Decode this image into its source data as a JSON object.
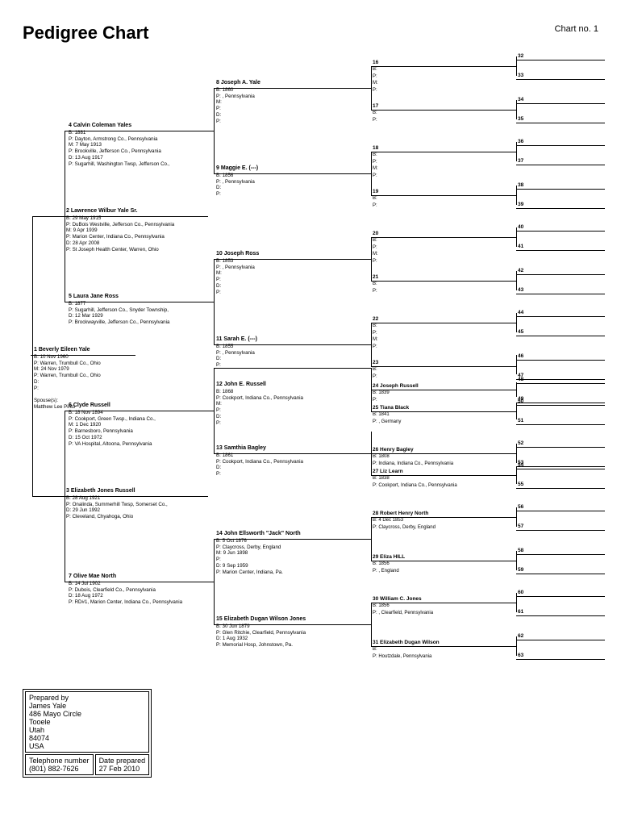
{
  "title": "Pedigree Chart",
  "chart_no": "Chart no. 1",
  "colors": {
    "bg": "#ffffff",
    "line": "#000000",
    "text": "#000000"
  },
  "persons": {
    "p1": {
      "num": "1",
      "name": "Beverly Eileen Yale",
      "lines": [
        "B: 10 Nov 1960",
        "P: Warren, Trumbull Co., Ohio",
        "M: 24 Nov 1979",
        "P: Warren, Trumbull Co., Ohio",
        "D:",
        "P:",
        "",
        "Spouse(s):",
        "Matthew Lee Pinto"
      ]
    },
    "p2": {
      "num": "2",
      "name": "Lawrence Wilbur Yale Sr.",
      "lines": [
        "B: 29 May 1915",
        "P: DuBois Westville, Jefferson Co., Pennsylvania",
        "M: 9 Apr 1939",
        "P: Marion Center, Indiana Co., Pennsylvania",
        "D: 28 Apr 2008",
        "P: St Joseph Health Center, Warren, Ohio"
      ]
    },
    "p3": {
      "num": "3",
      "name": "Elizabeth Jones Russell",
      "lines": [
        "B: 28 Aug 1921",
        "P: Onalinda, Summerhill Twsp, Somerset Co.,",
        "D: 29 Jun 1992",
        "P: Cleveland, Chyahoga, Ohio"
      ]
    },
    "p4": {
      "num": "4",
      "name": "Calvin Coleman Yales",
      "lines": [
        "B: 1881",
        "P: Dayton, Armstrong Co., Pennsylvania",
        "M: 7 May 1913",
        "P: Brookville, Jefferson Co., Pennsylvania",
        "D: 13 Aug 1917",
        "P: Sugarhill, Washington Twsp, Jefferson Co.,"
      ]
    },
    "p5": {
      "num": "5",
      "name": "Laura Jane Ross",
      "lines": [
        "B: 1877",
        "P: Sugarhill, Jefferson Co., Snyder Township,",
        "D: 12 Mar 1929",
        "P: Brockwayville, Jefferson Co., Pennsylvania"
      ]
    },
    "p6": {
      "num": "6",
      "name": "Clyde Russell",
      "lines": [
        "B: 18 Nov 1894",
        "P: Cookport, Green Twsp., Indiana Co.,",
        "M: 1 Dec 1920",
        "P: Barnesboro, Pennsylvania",
        "D: 15 Oct 1972",
        "P: VA Hospital, Altoona, Pennsylvania"
      ]
    },
    "p7": {
      "num": "7",
      "name": "Olive Mae North",
      "lines": [
        "B: 14 Jul 1902",
        "P: Dubois, Clearfield Co., Pennsylvania",
        "D: 18 Aug 1972",
        "P: RD#1, Marion Center, Indiana Co., Pennsylvania"
      ]
    },
    "p8": {
      "num": "8",
      "name": "Joseph A. Yale",
      "lines": [
        "B: 1860",
        "P: , Pennsylvania",
        "M:",
        "P:",
        "D:",
        "P:"
      ]
    },
    "p9": {
      "num": "9",
      "name": "Maggie E. (---)",
      "lines": [
        "B: 1856",
        "P: , Pennsylvania",
        "D:",
        "P:"
      ]
    },
    "p10": {
      "num": "10",
      "name": "Joseph Ross",
      "lines": [
        "B: 1853",
        "P: , Pennsylvania",
        "M:",
        "P:",
        "D:",
        "P:"
      ]
    },
    "p11": {
      "num": "11",
      "name": "Sarah E. (---)",
      "lines": [
        "B: 1855",
        "P: , Pennsylvania",
        "D:",
        "P:"
      ]
    },
    "p12": {
      "num": "12",
      "name": "John E. Russell",
      "lines": [
        "B: 1868",
        "P: Cookport, Indiana Co., Pennsylvania",
        "M:",
        "P:",
        "D:",
        "P:"
      ]
    },
    "p13": {
      "num": "13",
      "name": "Samthia Bagley",
      "lines": [
        "B: 1861",
        "P: Cookport, Indiana Co., Pennsylvania",
        "D:",
        "P:"
      ]
    },
    "p14": {
      "num": "14",
      "name": "John Ellsworth \"Jack\" North",
      "lines": [
        "B: 5 Oct 1876",
        "P: Claycross, Derby, England",
        "M: 9 Jun 1898",
        "P:",
        "D: 9 Sep 1959",
        "P: Marion Center, Indiana, Pa."
      ]
    },
    "p15": {
      "num": "15",
      "name": "Elizabeth Dugan Wilson Jones",
      "lines": [
        "B: 30 Jun 1879",
        "P: Glen Ritchie, Clearfield, Pennsylvania",
        "D: 1 Aug 1932",
        "P: Memorial Hosp, Johnstown, Pa."
      ]
    }
  },
  "gen5": {
    "s16": {
      "num": "16",
      "sub": [
        "B:",
        "P:",
        "M:",
        "P:"
      ]
    },
    "s17": {
      "num": "17",
      "sub": [
        "B:",
        "P:"
      ]
    },
    "s18": {
      "num": "18",
      "sub": [
        "B:",
        "P:",
        "M:",
        "P:"
      ]
    },
    "s19": {
      "num": "19",
      "sub": [
        "B:",
        "P:"
      ]
    },
    "s20": {
      "num": "20",
      "sub": [
        "B:",
        "P:",
        "M:",
        "P:"
      ]
    },
    "s21": {
      "num": "21",
      "sub": [
        "B:",
        "P:"
      ]
    },
    "s22": {
      "num": "22",
      "sub": [
        "B:",
        "P:",
        "M:",
        "P:"
      ]
    },
    "s23": {
      "num": "23",
      "sub": [
        "B:",
        "P:"
      ]
    },
    "s24": {
      "num": "24",
      "name": "Joseph Russell",
      "sub": [
        "B: 1839",
        "P:"
      ]
    },
    "s25": {
      "num": "25",
      "name": "Tiana Black",
      "sub": [
        "B: 1841",
        "P: , Germany"
      ]
    },
    "s26": {
      "num": "26",
      "name": "Henry Bagley",
      "sub": [
        "B: 1808",
        "P: Indiana, Indiana Co., Pennsylvania"
      ]
    },
    "s27": {
      "num": "27",
      "name": "Liz Learn",
      "sub": [
        "B: 1838",
        "P: Cookport, Indiana Co., Pennsylvania"
      ]
    },
    "s28": {
      "num": "28",
      "name": "Robert Henry North",
      "sub": [
        "B: 4 Dec 1853",
        "P: Claycross, Derby, England"
      ]
    },
    "s29": {
      "num": "29",
      "name": "Eliza HILL",
      "sub": [
        "B: 1856",
        "P: , England"
      ]
    },
    "s30": {
      "num": "30",
      "name": "William C. Jones",
      "sub": [
        "B: 1856",
        "P: , Clearfield, Pennsylvania"
      ]
    },
    "s31": {
      "num": "31",
      "name": "Elizabeth Dugan Wilson",
      "sub": [
        "B:",
        "P: Houtzdale, Pennsylvania"
      ]
    }
  },
  "gen6_nums": [
    "32",
    "33",
    "34",
    "35",
    "36",
    "37",
    "38",
    "39",
    "40",
    "41",
    "42",
    "43",
    "44",
    "45",
    "46",
    "47",
    "48",
    "49",
    "50",
    "51",
    "52",
    "53",
    "54",
    "55",
    "56",
    "57",
    "58",
    "59",
    "60",
    "61",
    "62",
    "63"
  ],
  "prep": {
    "label": "Prepared by",
    "name": "James Yale",
    "addr1": "486 Mayo Circle",
    "city": "Tooele",
    "state": "Utah",
    "zip": "84074",
    "country": "USA",
    "tel_label": "Telephone number",
    "tel": "(801) 882-7626",
    "date_label": "Date prepared",
    "date": "27 Feb 2010"
  }
}
